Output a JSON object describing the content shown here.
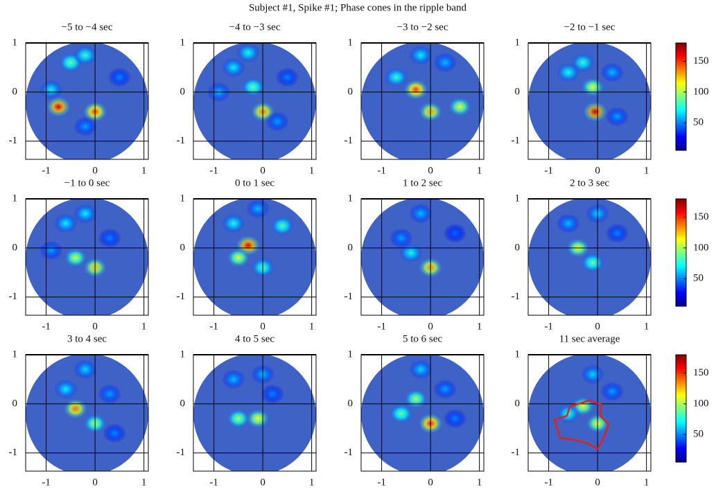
{
  "title": "Subject #1, Spike #1; Phase cones in the ripple band",
  "chart_data": [
    {
      "type": "heatmap",
      "title": "−5 to −4 sec",
      "xlim": [
        -1.42,
        1.09
      ],
      "ylim": [
        -1.37,
        1
      ],
      "xticks": [
        -1,
        0,
        1
      ],
      "yticks": [
        -1,
        0,
        1
      ],
      "grid": true,
      "clim": [
        5,
        180
      ],
      "x": [
        -0.75,
        0,
        -0.5,
        -0.2,
        -0.9,
        0.5,
        -0.2
      ],
      "y": [
        -0.3,
        -0.4,
        0.6,
        0.75,
        0.05,
        0.3,
        -0.7
      ],
      "values": [
        165,
        150,
        90,
        80,
        70,
        50,
        55
      ]
    },
    {
      "type": "heatmap",
      "title": "−4 to −3 sec",
      "xlim": [
        -1.42,
        1.09
      ],
      "ylim": [
        -1.37,
        1
      ],
      "xticks": [
        -1,
        0,
        1
      ],
      "yticks": [
        -1,
        0,
        1
      ],
      "grid": true,
      "clim": [
        5,
        180
      ],
      "x": [
        -0.2,
        0,
        -0.6,
        -0.3,
        0.3,
        -0.9,
        0.5
      ],
      "y": [
        0.1,
        -0.4,
        0.5,
        0.8,
        -0.6,
        0,
        0.3
      ],
      "values": [
        90,
        140,
        70,
        75,
        55,
        60,
        50
      ]
    },
    {
      "type": "heatmap",
      "title": "−3 to −2 sec",
      "xlim": [
        -1.42,
        1.09
      ],
      "ylim": [
        -1.37,
        1
      ],
      "xticks": [
        -1,
        0,
        1
      ],
      "yticks": [
        -1,
        0,
        1
      ],
      "grid": true,
      "clim": [
        5,
        180
      ],
      "x": [
        -0.3,
        0,
        -0.7,
        0.6,
        -0.2,
        0.3
      ],
      "y": [
        0.05,
        -0.4,
        0.3,
        -0.3,
        0.75,
        0.6
      ],
      "values": [
        150,
        130,
        80,
        110,
        70,
        60
      ]
    },
    {
      "type": "heatmap",
      "title": "−2 to −1 sec",
      "xlim": [
        -1.42,
        1.09
      ],
      "ylim": [
        -1.37,
        1
      ],
      "xticks": [
        -1,
        0,
        1
      ],
      "yticks": [
        -1,
        0,
        1
      ],
      "grid": true,
      "clim": [
        5,
        180
      ],
      "cticks": [
        50,
        100,
        150
      ],
      "x": [
        -0.05,
        -0.1,
        -0.6,
        -0.3,
        0.3,
        0.4
      ],
      "y": [
        -0.4,
        0.1,
        0.4,
        0.6,
        0.4,
        -0.5
      ],
      "values": [
        170,
        110,
        75,
        80,
        60,
        55
      ]
    },
    {
      "type": "heatmap",
      "title": "−1 to 0 sec",
      "xlim": [
        -1.42,
        1.09
      ],
      "ylim": [
        -1.37,
        1
      ],
      "xticks": [
        -1,
        0,
        1
      ],
      "yticks": [
        -1,
        0,
        1
      ],
      "grid": true,
      "clim": [
        5,
        180
      ],
      "x": [
        -0.4,
        0,
        -0.6,
        -0.2,
        -0.9,
        0.3
      ],
      "y": [
        -0.2,
        -0.4,
        0.5,
        0.7,
        -0.05,
        0.2
      ],
      "values": [
        105,
        125,
        70,
        70,
        55,
        50
      ]
    },
    {
      "type": "heatmap",
      "title": "0 to 1 sec",
      "xlim": [
        -1.42,
        1.09
      ],
      "ylim": [
        -1.37,
        1
      ],
      "xticks": [
        -1,
        0,
        1
      ],
      "yticks": [
        -1,
        0,
        1
      ],
      "grid": true,
      "clim": [
        5,
        180
      ],
      "x": [
        -0.3,
        -0.5,
        0,
        -0.6,
        0.4,
        -0.1
      ],
      "y": [
        0.05,
        -0.2,
        -0.4,
        0.5,
        0.45,
        0.8
      ],
      "values": [
        165,
        110,
        85,
        75,
        85,
        60
      ]
    },
    {
      "type": "heatmap",
      "title": "1 to 2 sec",
      "xlim": [
        -1.42,
        1.09
      ],
      "ylim": [
        -1.37,
        1
      ],
      "xticks": [
        -1,
        0,
        1
      ],
      "yticks": [
        -1,
        0,
        1
      ],
      "grid": true,
      "clim": [
        5,
        180
      ],
      "x": [
        0,
        -0.4,
        -0.2,
        -0.6,
        0.5
      ],
      "y": [
        -0.4,
        -0.1,
        0.7,
        0.2,
        0.3
      ],
      "values": [
        135,
        75,
        60,
        55,
        45
      ]
    },
    {
      "type": "heatmap",
      "title": "2 to 3 sec",
      "xlim": [
        -1.42,
        1.09
      ],
      "ylim": [
        -1.37,
        1
      ],
      "xticks": [
        -1,
        0,
        1
      ],
      "yticks": [
        -1,
        0,
        1
      ],
      "grid": true,
      "clim": [
        5,
        180
      ],
      "cticks": [
        50,
        100,
        150
      ],
      "x": [
        -0.4,
        -0.1,
        -0.6,
        0,
        0.4
      ],
      "y": [
        0,
        -0.3,
        0.5,
        0.7,
        0.3
      ],
      "values": [
        115,
        90,
        60,
        65,
        50
      ]
    },
    {
      "type": "heatmap",
      "title": "3 to 4 sec",
      "xlim": [
        -1.42,
        1.09
      ],
      "ylim": [
        -1.37,
        1
      ],
      "xticks": [
        -1,
        0,
        1
      ],
      "yticks": [
        -1,
        0,
        1
      ],
      "grid": true,
      "clim": [
        5,
        180
      ],
      "x": [
        -0.4,
        0,
        -0.6,
        -0.2,
        0.3,
        0.4
      ],
      "y": [
        -0.1,
        -0.4,
        0.3,
        0.7,
        0.2,
        -0.6
      ],
      "values": [
        140,
        100,
        70,
        65,
        55,
        50
      ]
    },
    {
      "type": "heatmap",
      "title": "4 to 5 sec",
      "xlim": [
        -1.42,
        1.09
      ],
      "ylim": [
        -1.37,
        1
      ],
      "xticks": [
        -1,
        0,
        1
      ],
      "yticks": [
        -1,
        0,
        1
      ],
      "grid": true,
      "clim": [
        5,
        180
      ],
      "x": [
        -0.5,
        -0.1,
        0,
        -0.6,
        0.2
      ],
      "y": [
        -0.3,
        -0.3,
        0.6,
        0.5,
        0.2
      ],
      "values": [
        100,
        115,
        60,
        60,
        50
      ]
    },
    {
      "type": "heatmap",
      "title": "5 to 6 sec",
      "xlim": [
        -1.42,
        1.09
      ],
      "ylim": [
        -1.37,
        1
      ],
      "xticks": [
        -1,
        0,
        1
      ],
      "yticks": [
        -1,
        0,
        1
      ],
      "grid": true,
      "clim": [
        5,
        180
      ],
      "x": [
        0,
        -0.3,
        -0.6,
        -0.2,
        0.3,
        0.5
      ],
      "y": [
        -0.4,
        0.1,
        -0.2,
        0.7,
        0.3,
        -0.3
      ],
      "values": [
        155,
        100,
        90,
        65,
        55,
        50
      ]
    },
    {
      "type": "heatmap",
      "title": "11 sec average",
      "xlim": [
        -1.42,
        1.09
      ],
      "ylim": [
        -1.37,
        1
      ],
      "xticks": [
        -1,
        0,
        1
      ],
      "yticks": [
        -1,
        0,
        1
      ],
      "grid": true,
      "clim": [
        5,
        180
      ],
      "cticks": [
        50,
        100,
        150
      ],
      "x": [
        -0.3,
        0,
        -0.6,
        -0.1,
        0.3
      ],
      "y": [
        -0.05,
        -0.4,
        -0.2,
        0.6,
        0.25
      ],
      "values": [
        110,
        115,
        80,
        65,
        55
      ]
    }
  ]
}
